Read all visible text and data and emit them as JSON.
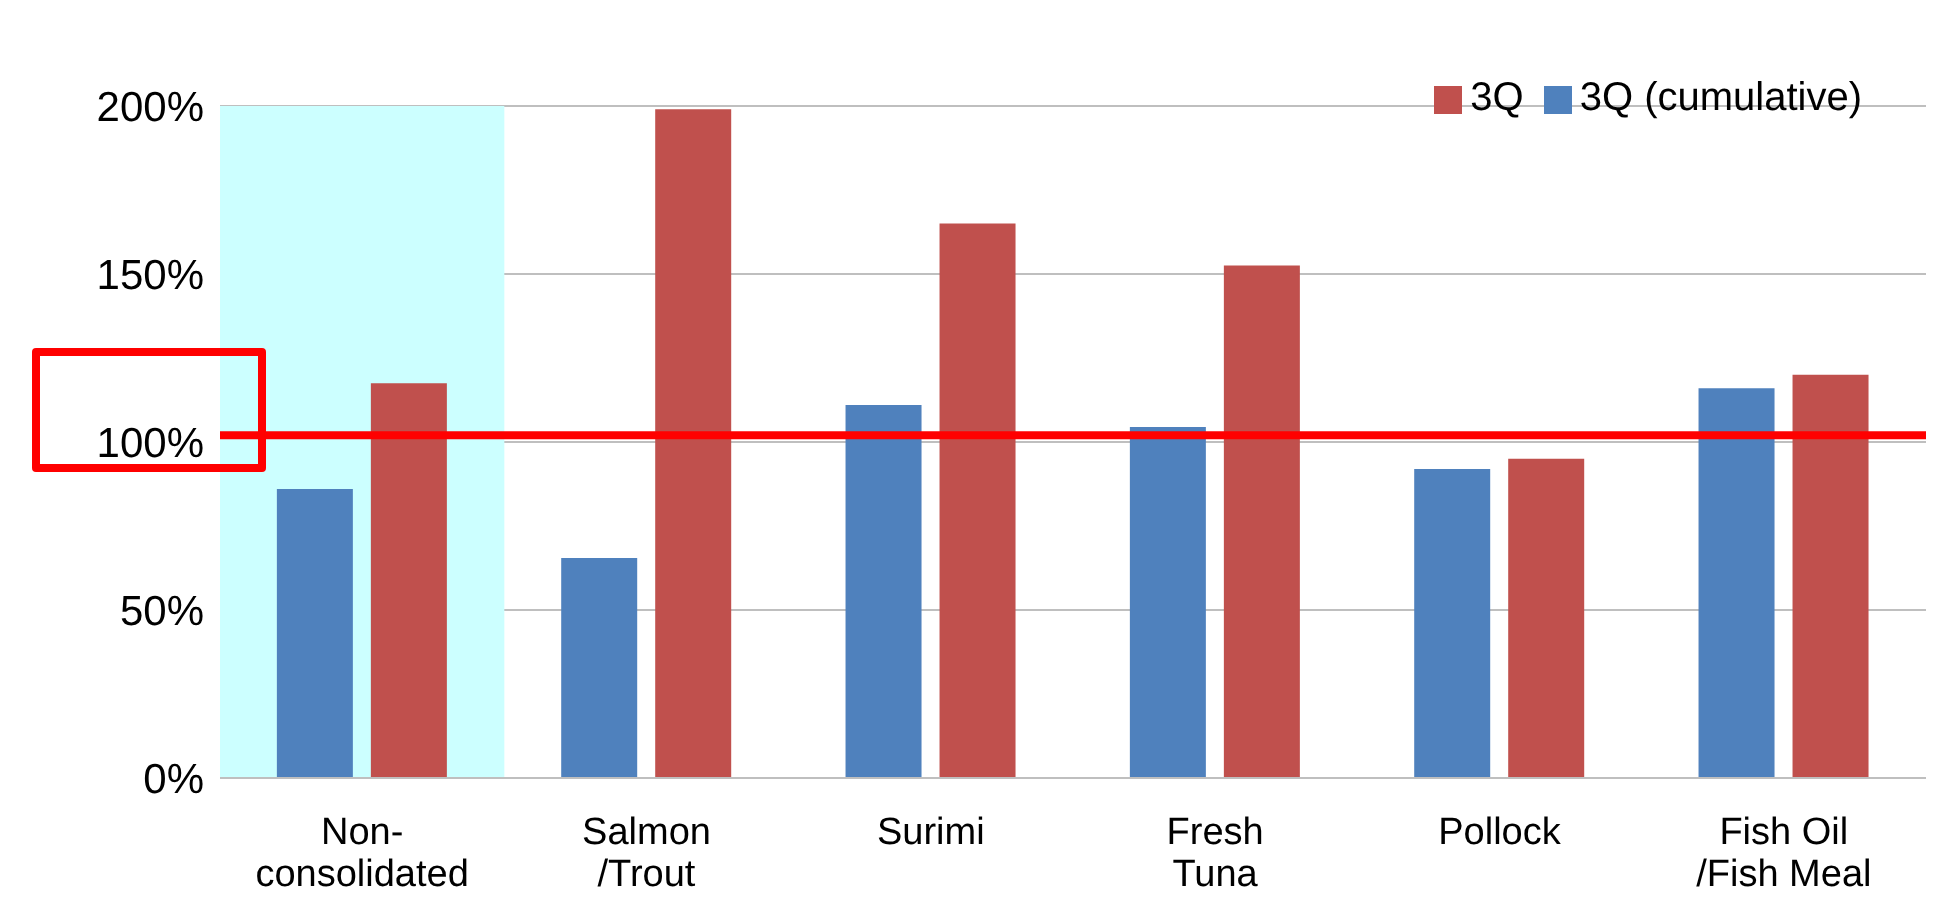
{
  "chart_data": {
    "type": "bar",
    "categories": [
      "Non-consolidated",
      "Salmon /Trout",
      "Surimi",
      "Fresh Tuna",
      "Pollock",
      "Fish Oil /Fish Meal"
    ],
    "series": [
      {
        "name": "3Q (cumulative)",
        "color": "#4f81bd",
        "values": [
          86,
          65.5,
          111,
          104.5,
          92,
          116
        ]
      },
      {
        "name": "3Q",
        "color": "#c0504d",
        "values": [
          117.5,
          199,
          165,
          152.5,
          95,
          120
        ]
      }
    ],
    "ylim": [
      0,
      200
    ],
    "yticks": [
      {
        "value": 0,
        "label": "0%"
      },
      {
        "value": 50,
        "label": "50%"
      },
      {
        "value": 100,
        "label": "100%"
      },
      {
        "value": 150,
        "label": "150%"
      },
      {
        "value": 200,
        "label": "200%"
      }
    ],
    "grid": "y",
    "legend": "top right",
    "ref_lines": [
      {
        "axis": "y",
        "value": 102,
        "color": "#ff0000"
      }
    ],
    "bands": [
      {
        "axis": "x",
        "from": "Non-consolidated",
        "to": "Non-consolidated",
        "color": "#ccffff"
      }
    ]
  }
}
